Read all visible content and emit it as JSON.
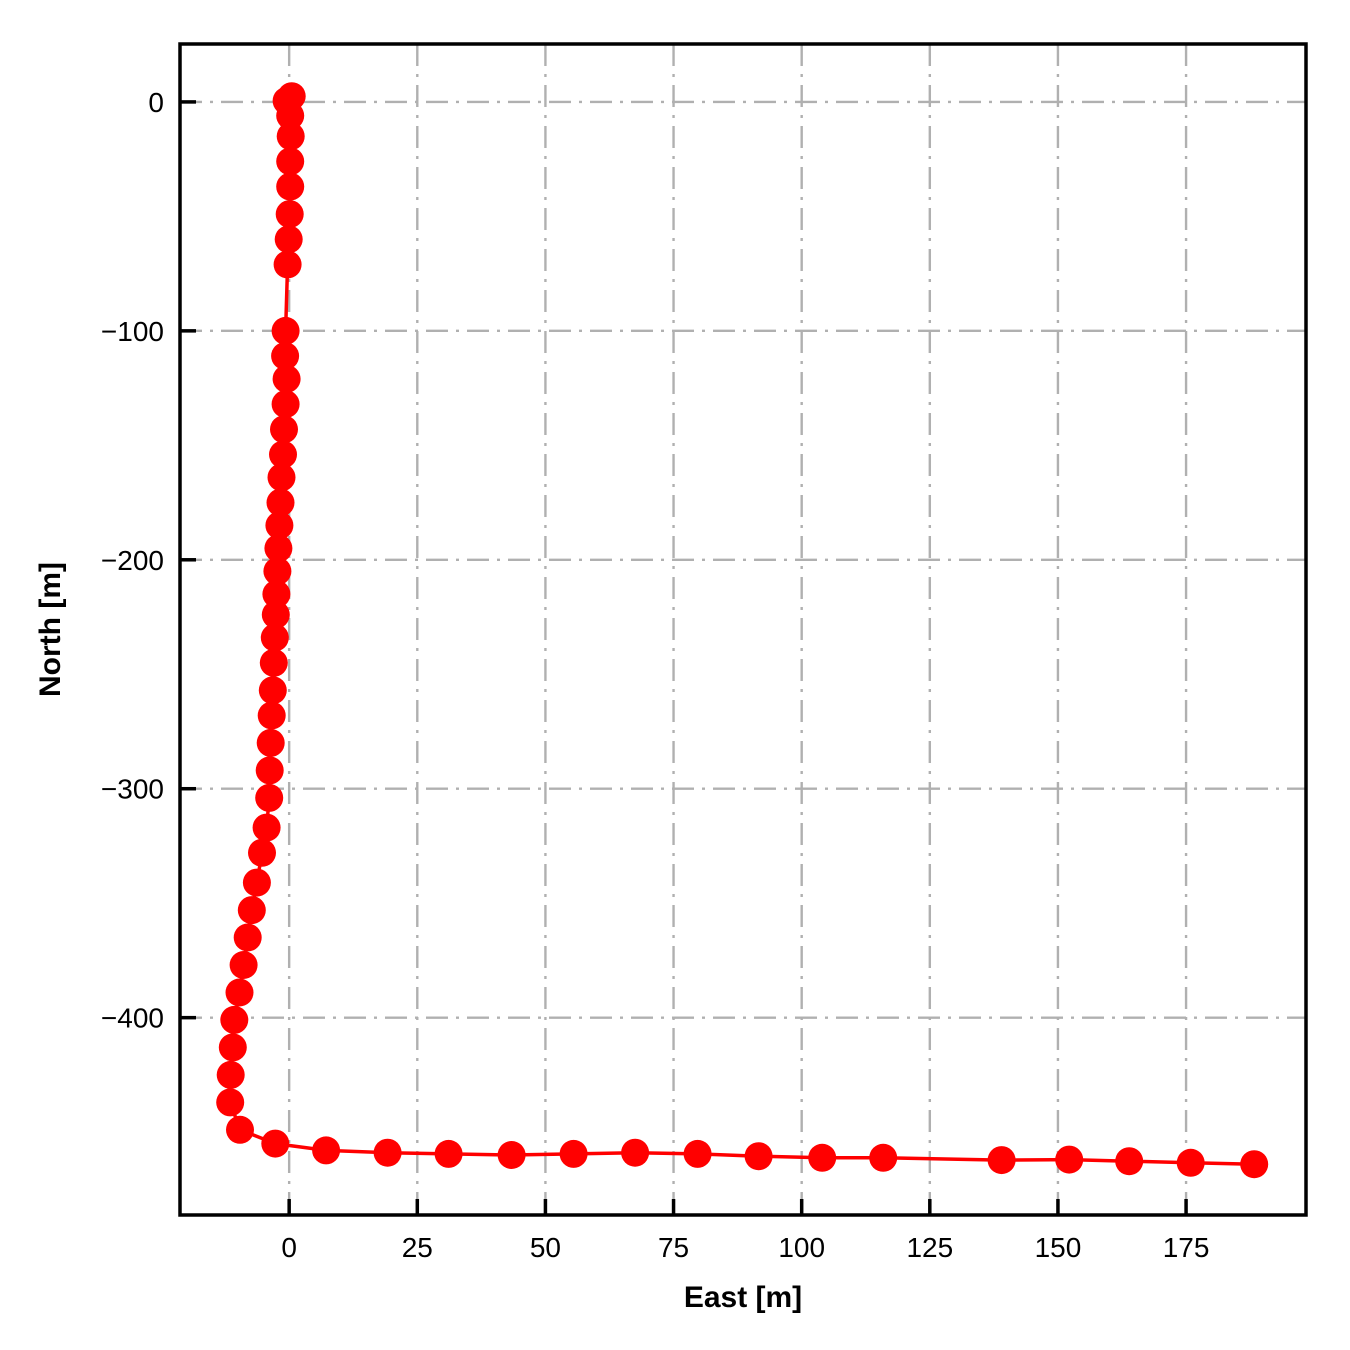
{
  "figure": {
    "background_color": "#ffffff"
  },
  "chart_data": {
    "type": "line",
    "title": "",
    "xlabel": "East [m]",
    "ylabel": "North [m]",
    "xlim": [
      -21.3,
      198.4
    ],
    "ylim": [
      -486.2,
      25.3
    ],
    "x_ticks": [
      0,
      25,
      50,
      75,
      100,
      125,
      150,
      175
    ],
    "x_tick_labels": [
      "0",
      "25",
      "50",
      "75",
      "100",
      "125",
      "150",
      "175"
    ],
    "y_ticks": [
      0,
      -100,
      -200,
      -300,
      -400
    ],
    "y_tick_labels": [
      "0",
      "−100",
      "−200",
      "−300",
      "−400"
    ],
    "grid": true,
    "grid_linestyle": "dash-dot",
    "grid_color": "#b0b0b0",
    "grid_linewidth": 2.4,
    "axis_color": "#000000",
    "spine_linewidth": 3.5,
    "tick_direction": "in",
    "tick_length": 16,
    "legend": "none",
    "line_color": "#ff0000",
    "line_width": 3.5,
    "marker": "circle",
    "marker_color": "#ff0000",
    "marker_radius_px": 14,
    "series": [
      {
        "name": "trajectory",
        "points": [
          [
            0.5,
            2.5
          ],
          [
            -0.5,
            0.5
          ],
          [
            0.2,
            -6
          ],
          [
            0.3,
            -15
          ],
          [
            0.2,
            -26
          ],
          [
            0.2,
            -37
          ],
          [
            0.1,
            -49
          ],
          [
            -0.1,
            -60
          ],
          [
            -0.3,
            -71
          ],
          [
            -0.7,
            -100
          ],
          [
            -0.8,
            -111
          ],
          [
            -0.5,
            -121
          ],
          [
            -0.7,
            -132
          ],
          [
            -1.0,
            -143
          ],
          [
            -1.2,
            -154
          ],
          [
            -1.5,
            -164
          ],
          [
            -1.7,
            -175
          ],
          [
            -1.9,
            -185
          ],
          [
            -2.1,
            -195
          ],
          [
            -2.3,
            -205
          ],
          [
            -2.5,
            -215
          ],
          [
            -2.6,
            -224
          ],
          [
            -2.8,
            -234
          ],
          [
            -3.0,
            -245
          ],
          [
            -3.2,
            -257
          ],
          [
            -3.4,
            -268
          ],
          [
            -3.6,
            -280
          ],
          [
            -3.8,
            -292
          ],
          [
            -3.9,
            -304
          ],
          [
            -4.4,
            -317
          ],
          [
            -5.3,
            -328
          ],
          [
            -6.3,
            -341
          ],
          [
            -7.3,
            -353
          ],
          [
            -8.1,
            -365
          ],
          [
            -8.9,
            -377
          ],
          [
            -9.7,
            -389
          ],
          [
            -10.7,
            -401
          ],
          [
            -11.0,
            -413
          ],
          [
            -11.4,
            -425
          ],
          [
            -11.5,
            -437
          ],
          [
            -9.6,
            -449
          ],
          [
            -2.7,
            -455
          ],
          [
            7.2,
            -458
          ],
          [
            19.2,
            -459
          ],
          [
            31.1,
            -459.5
          ],
          [
            43.4,
            -460
          ],
          [
            55.5,
            -459.5
          ],
          [
            67.5,
            -459
          ],
          [
            79.7,
            -459.5
          ],
          [
            91.6,
            -460.5
          ],
          [
            104.0,
            -461.2
          ],
          [
            115.9,
            -461.2
          ],
          [
            139.0,
            -462.2
          ],
          [
            152.2,
            -462.0
          ],
          [
            163.9,
            -462.7
          ],
          [
            175.9,
            -463.4
          ],
          [
            188.3,
            -464.0
          ]
        ]
      }
    ]
  }
}
